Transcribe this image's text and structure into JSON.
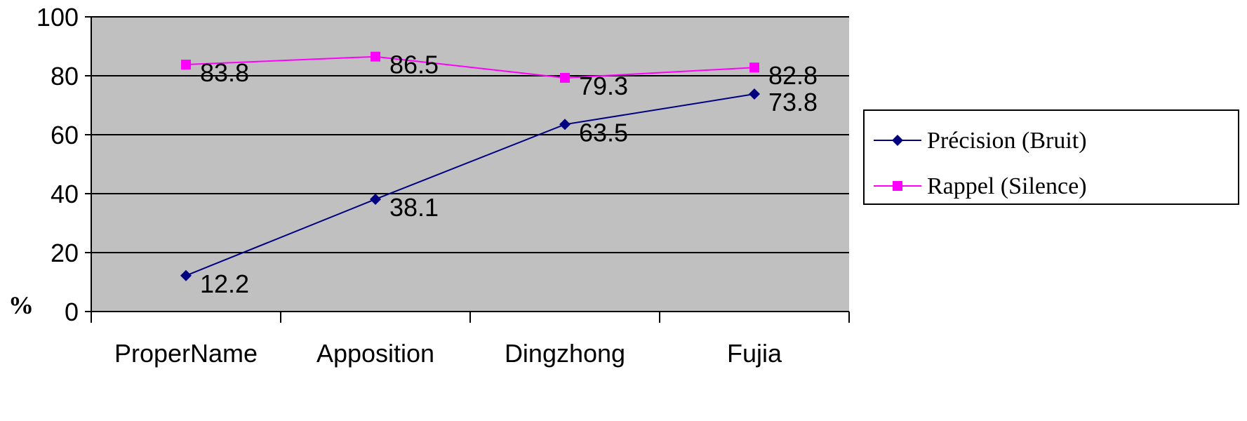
{
  "chart_data": {
    "type": "line",
    "categories": [
      "ProperName",
      "Apposition",
      "Dingzhong",
      "Fujia"
    ],
    "series": [
      {
        "name": "Précision (Bruit)",
        "values": [
          12.2,
          38.1,
          63.5,
          73.8
        ],
        "color": "#000080",
        "marker": "diamond"
      },
      {
        "name": "Rappel (Silence)",
        "values": [
          83.8,
          86.5,
          79.3,
          82.8
        ],
        "color": "#ff00ff",
        "marker": "square"
      }
    ],
    "ylim": [
      0,
      100
    ],
    "yticks": [
      0,
      20,
      40,
      60,
      80,
      100
    ],
    "ylabel": "%",
    "grid": true,
    "plot_background": "#c0c0c0",
    "legend_position": "right"
  }
}
